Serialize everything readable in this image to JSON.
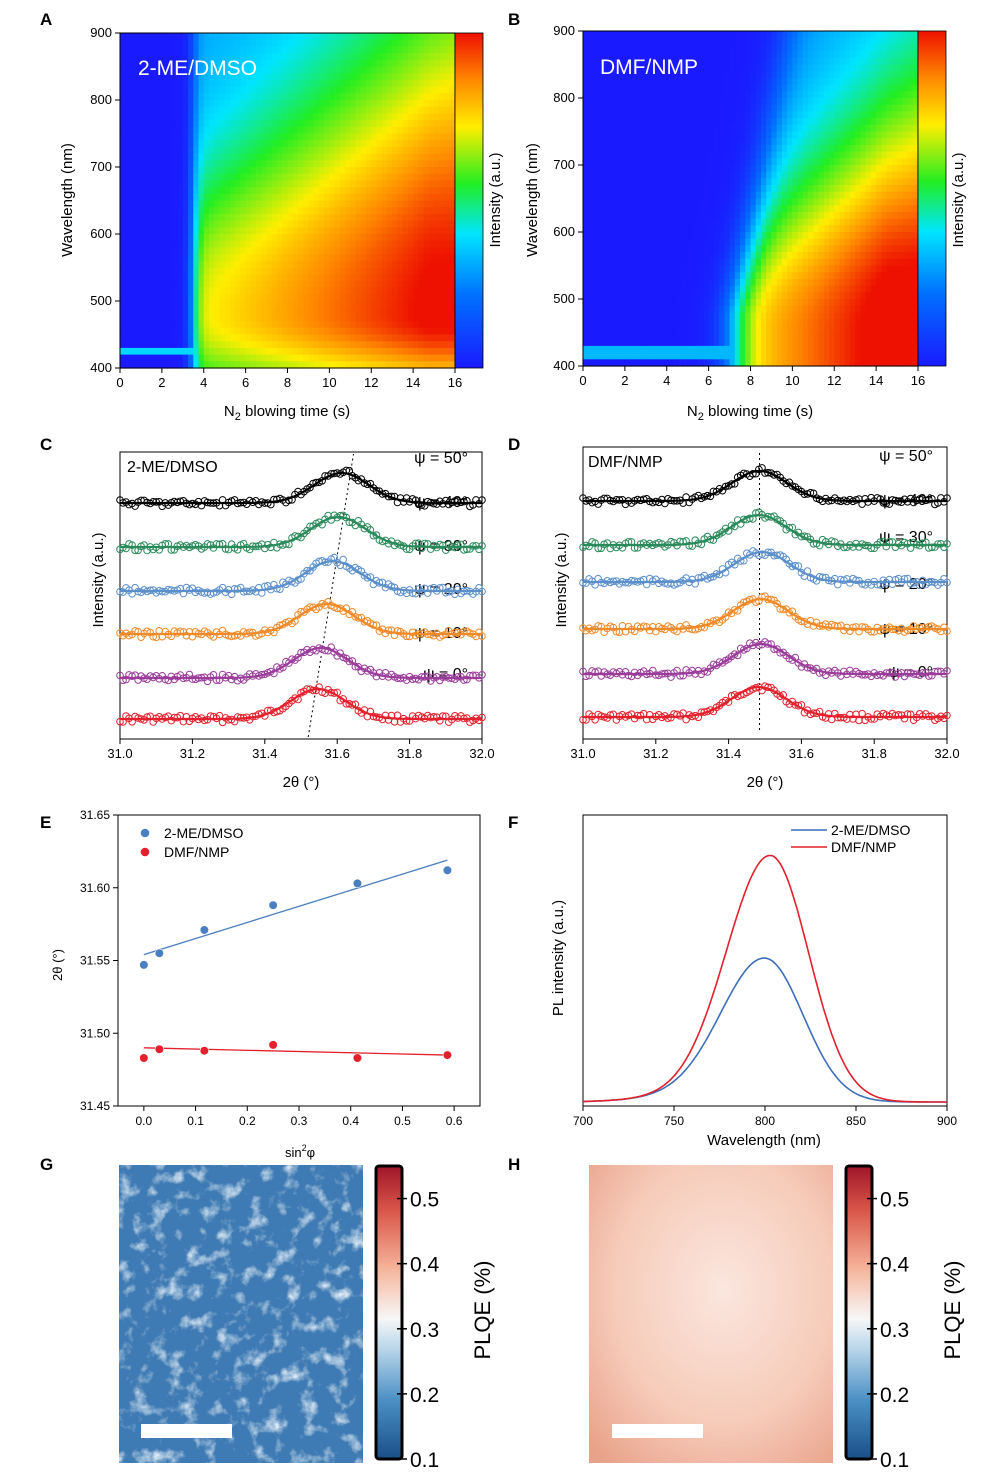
{
  "panels": {
    "A": {
      "label": "A",
      "chart_data": {
        "type": "heatmap",
        "annotation": "2-ME/DMSO",
        "xlabel_main": "N",
        "xlabel_sub": "2",
        "xlabel_rest": " blowing time (s)",
        "ylabel": "Wavelength (nm)",
        "colorbar_label": "Intensity (a.u.)",
        "xlim": [
          0,
          16
        ],
        "ylim": [
          400,
          900
        ],
        "xticks": [
          0,
          2,
          4,
          6,
          8,
          10,
          12,
          14,
          16
        ],
        "yticks": [
          400,
          500,
          600,
          700,
          800,
          900
        ],
        "onset_time": 3.5,
        "peak_wavelength": 480
      }
    },
    "B": {
      "label": "B",
      "chart_data": {
        "type": "heatmap",
        "annotation": "DMF/NMP",
        "xlabel_main": "N",
        "xlabel_sub": "2",
        "xlabel_rest": " blowing time (s)",
        "ylabel": "Wavelength (nm)",
        "colorbar_label": "Intensity (a.u.)",
        "xlim": [
          0,
          16
        ],
        "ylim": [
          400,
          900
        ],
        "xticks": [
          0,
          2,
          4,
          6,
          8,
          10,
          12,
          14,
          16
        ],
        "yticks": [
          400,
          500,
          600,
          700,
          800,
          900
        ],
        "onset_time": 7.2,
        "peak_wavelength": 450
      }
    },
    "C": {
      "label": "C",
      "chart_data": {
        "type": "scatter",
        "annotation": "2-ME/DMSO",
        "xlabel": "2θ (°)",
        "ylabel": "Intensity (a.u.)",
        "xlim": [
          31.0,
          32.0
        ],
        "xticks": [
          "31.0",
          "31.2",
          "31.4",
          "31.6",
          "31.8",
          "32.0"
        ],
        "series": [
          {
            "name": "ψ = 0°",
            "color": "#e3202b",
            "peak": 31.547
          },
          {
            "name": "ψ = 10°",
            "color": "#9b3c9b",
            "peak": 31.555
          },
          {
            "name": "ψ = 20°",
            "color": "#f08a28",
            "peak": 31.571
          },
          {
            "name": "ψ = 30°",
            "color": "#5b8fcc",
            "peak": 31.588
          },
          {
            "name": "ψ = 40°",
            "color": "#2b8a5a",
            "peak": 31.603
          },
          {
            "name": "ψ = 50°",
            "color": "#000000",
            "peak": 31.612
          }
        ]
      }
    },
    "D": {
      "label": "D",
      "chart_data": {
        "type": "scatter",
        "annotation": "DMF/NMP",
        "xlabel": "2θ (°)",
        "ylabel": "Intensity (a.u.)",
        "xlim": [
          31.0,
          32.0
        ],
        "xticks": [
          "31.0",
          "31.2",
          "31.4",
          "31.6",
          "31.8",
          "32.0"
        ],
        "series": [
          {
            "name": "ψ = 0°",
            "color": "#e3202b",
            "peak": 31.483
          },
          {
            "name": "ψ = 10°",
            "color": "#9b3c9b",
            "peak": 31.489
          },
          {
            "name": "ψ = 20°",
            "color": "#f08a28",
            "peak": 31.488
          },
          {
            "name": "ψ = 30°",
            "color": "#5b8fcc",
            "peak": 31.492
          },
          {
            "name": "ψ = 40°",
            "color": "#2b8a5a",
            "peak": 31.483
          },
          {
            "name": "ψ = 50°",
            "color": "#000000",
            "peak": 31.485
          }
        ]
      }
    },
    "E": {
      "label": "E",
      "chart_data": {
        "type": "scatter",
        "xlabel_main": "sin",
        "xlabel_sup": "2",
        "xlabel_rest": "φ",
        "ylabel": "2θ (°)",
        "xlim": [
          -0.05,
          0.65
        ],
        "ylim": [
          31.45,
          31.65
        ],
        "xticks": [
          "0.0",
          "0.1",
          "0.2",
          "0.3",
          "0.4",
          "0.5",
          "0.6"
        ],
        "yticks": [
          "31.45",
          "31.50",
          "31.55",
          "31.60",
          "31.65"
        ],
        "series": [
          {
            "name": "2-ME/DMSO",
            "color": "#4a7fc1",
            "x": [
              0.0,
              0.03,
              0.117,
              0.25,
              0.413,
              0.587
            ],
            "y": [
              31.547,
              31.555,
              31.571,
              31.588,
              31.603,
              31.612
            ],
            "fit": [
              31.554,
              31.619
            ]
          },
          {
            "name": "DMF/NMP",
            "color": "#e3202b",
            "x": [
              0.0,
              0.03,
              0.117,
              0.25,
              0.413,
              0.587
            ],
            "y": [
              31.483,
              31.489,
              31.488,
              31.492,
              31.483,
              31.485
            ],
            "fit": [
              31.49,
              31.485
            ]
          }
        ]
      }
    },
    "F": {
      "label": "F",
      "chart_data": {
        "type": "line",
        "xlabel": "Wavelength (nm)",
        "ylabel": "PL intensity (a.u.)",
        "xlim": [
          700,
          900
        ],
        "xticks": [
          "700",
          "750",
          "800",
          "850",
          "900"
        ],
        "series": [
          {
            "name": "2-ME/DMSO",
            "color": "#3d6fb8",
            "peak_nm": 800,
            "peak_rel": 0.58
          },
          {
            "name": "DMF/NMP",
            "color": "#e3202b",
            "peak_nm": 803,
            "peak_rel": 1.0
          }
        ]
      }
    },
    "G": {
      "label": "G",
      "chart_data": {
        "type": "heatmap",
        "colorbar_label": "PLQE (%)",
        "clim": [
          0.1,
          0.55
        ],
        "cticks": [
          "0.1",
          "0.2",
          "0.3",
          "0.4",
          "0.5"
        ],
        "mean_plqe": 0.15
      }
    },
    "H": {
      "label": "H",
      "chart_data": {
        "type": "heatmap",
        "colorbar_label": "PLQE (%)",
        "clim": [
          0.1,
          0.55
        ],
        "cticks": [
          "0.1",
          "0.2",
          "0.3",
          "0.4",
          "0.5"
        ],
        "mean_plqe": 0.4
      }
    }
  }
}
